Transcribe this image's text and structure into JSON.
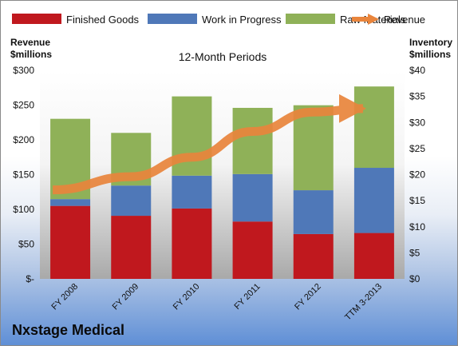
{
  "chart_data": {
    "type": "bar",
    "title": "12-Month Periods",
    "company": "Nxstage Medical",
    "categories": [
      "FY 2008",
      "FY 2009",
      "FY 2010",
      "FY 2011",
      "FY 2012",
      "TTM 3-2013"
    ],
    "series": [
      {
        "name": "Finished Goods",
        "axis": "right",
        "color": "#c0181e",
        "values": [
          14.0,
          12.1,
          13.5,
          11.0,
          8.6,
          8.8
        ]
      },
      {
        "name": "Work in Progress",
        "axis": "right",
        "color": "#4f78b8",
        "values": [
          1.3,
          5.8,
          6.3,
          9.1,
          8.4,
          12.5
        ]
      },
      {
        "name": "Raw Materials",
        "axis": "right",
        "color": "#8fb158",
        "values": [
          15.4,
          10.1,
          15.2,
          12.7,
          16.3,
          15.6
        ]
      },
      {
        "name": "Revenue",
        "axis": "left",
        "type": "line",
        "color": "#e9853c",
        "values": [
          128,
          147,
          175,
          212,
          240,
          245
        ]
      }
    ],
    "left_axis": {
      "label_line1": "Revenue",
      "label_line2": "$millions",
      "range": [
        0,
        300
      ],
      "ticks": [
        "$-",
        "$50",
        "$100",
        "$150",
        "$200",
        "$250",
        "$300"
      ]
    },
    "right_axis": {
      "label_line1": "Inventory",
      "label_line2": "$millions",
      "range": [
        0,
        40
      ],
      "ticks": [
        "$0",
        "$5",
        "$10",
        "$15",
        "$20",
        "$25",
        "$30",
        "$35",
        "$40"
      ]
    },
    "stacked": true,
    "grid": false,
    "legend": "top"
  }
}
